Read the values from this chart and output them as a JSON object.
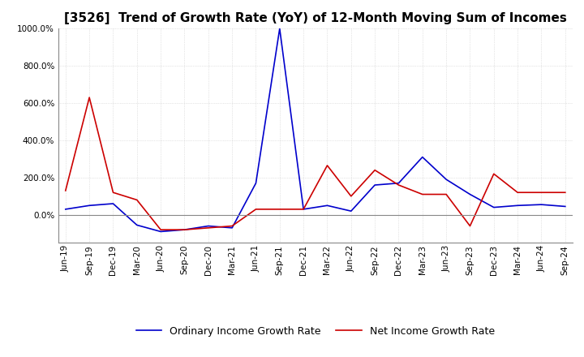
{
  "title": "[3526]  Trend of Growth Rate (YoY) of 12-Month Moving Sum of Incomes",
  "title_fontsize": 11,
  "ylim": [
    -150,
    1000
  ],
  "yticks": [
    0,
    200,
    400,
    600,
    800,
    1000
  ],
  "background_color": "#ffffff",
  "grid_color": "#cccccc",
  "ordinary_color": "#0000cc",
  "net_color": "#cc0000",
  "legend_labels": [
    "Ordinary Income Growth Rate",
    "Net Income Growth Rate"
  ],
  "x_labels": [
    "Jun-19",
    "Sep-19",
    "Dec-19",
    "Mar-20",
    "Jun-20",
    "Sep-20",
    "Dec-20",
    "Mar-21",
    "Jun-21",
    "Sep-21",
    "Dec-21",
    "Mar-22",
    "Jun-22",
    "Sep-22",
    "Dec-22",
    "Mar-23",
    "Jun-23",
    "Sep-23",
    "Dec-23",
    "Mar-24",
    "Jun-24",
    "Sep-24"
  ],
  "ordinary_income_growth": [
    30,
    50,
    60,
    -55,
    -90,
    -80,
    -60,
    -70,
    170,
    1000,
    30,
    50,
    20,
    160,
    170,
    310,
    190,
    110,
    40,
    50,
    55,
    45
  ],
  "net_income_growth": [
    130,
    630,
    120,
    80,
    -80,
    -80,
    -70,
    -60,
    30,
    30,
    30,
    265,
    100,
    240,
    160,
    110,
    110,
    -60,
    220,
    120,
    120,
    120
  ]
}
